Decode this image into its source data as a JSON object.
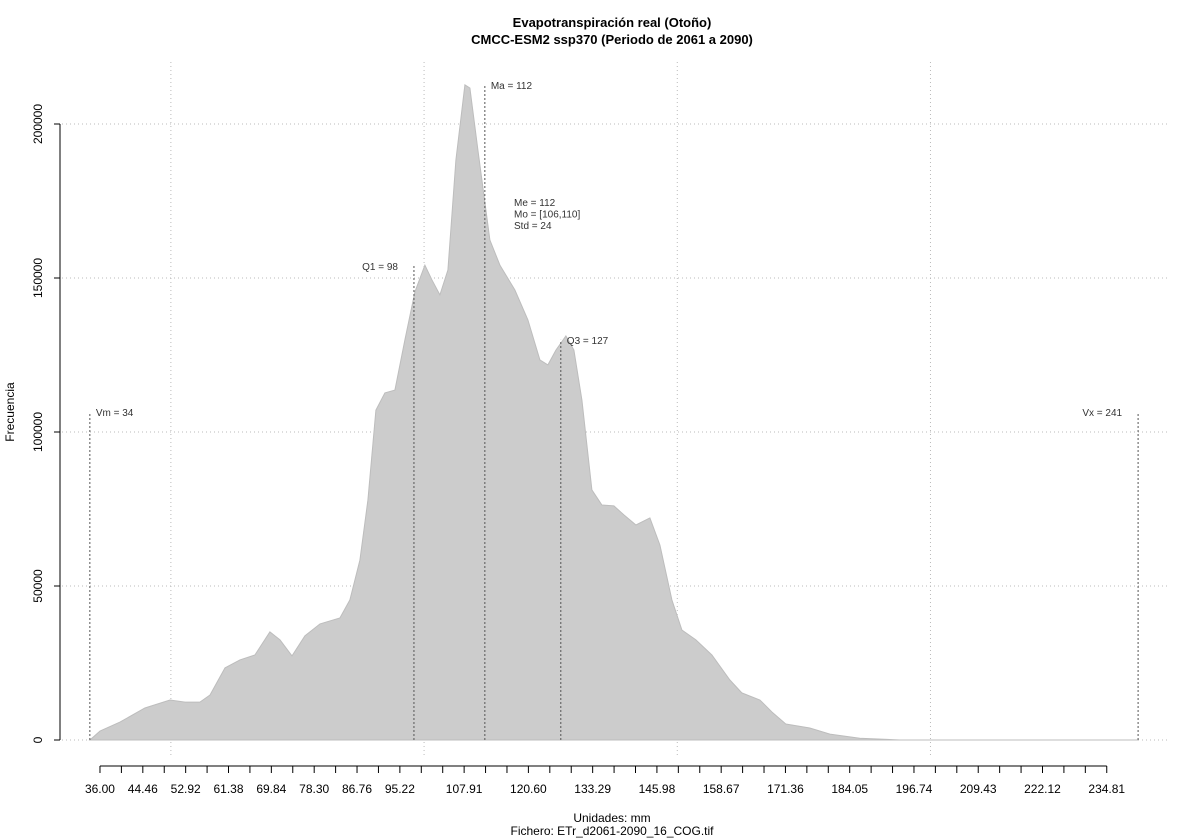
{
  "chart_data": {
    "type": "area",
    "title": "Evapotranspiración real (Otoño)",
    "subtitle": "CMCC-ESM2 ssp370 (Periodo de 2061 a 2090)",
    "xlabel": "Unidades: mm",
    "ylabel": "Frecuencia",
    "caption": "Fichero: ETr_d2061-2090_16_COG.tif",
    "color": "#cccccc",
    "grid": true,
    "xlim": [
      28.5,
      247.3
    ],
    "ylim": [
      -5844,
      220130
    ],
    "yticks": [
      0,
      50000,
      100000,
      150000,
      200000
    ],
    "xgrid": [
      50,
      100,
      150,
      200
    ],
    "xticks": [
      {
        "value": 36.0,
        "label": "36.00"
      },
      {
        "value": 44.46,
        "label": "44.46"
      },
      {
        "value": 52.92,
        "label": "52.92"
      },
      {
        "value": 61.38,
        "label": "61.38"
      },
      {
        "value": 69.84,
        "label": "69.84"
      },
      {
        "value": 78.3,
        "label": "78.30"
      },
      {
        "value": 86.76,
        "label": "86.76"
      },
      {
        "value": 95.22,
        "label": "95.22"
      },
      {
        "value": 107.91,
        "label": "107.91"
      },
      {
        "value": 120.6,
        "label": "120.60"
      },
      {
        "value": 133.29,
        "label": "133.29"
      },
      {
        "value": 145.98,
        "label": "145.98"
      },
      {
        "value": 158.67,
        "label": "158.67"
      },
      {
        "value": 171.36,
        "label": "171.36"
      },
      {
        "value": 184.05,
        "label": "184.05"
      },
      {
        "value": 196.74,
        "label": "196.74"
      },
      {
        "value": 209.43,
        "label": "209.43"
      },
      {
        "value": 222.12,
        "label": "222.12"
      },
      {
        "value": 234.81,
        "label": "234.81"
      }
    ],
    "xminor_ticks": [
      40.23,
      48.69,
      57.15,
      65.61,
      74.07,
      82.53,
      90.99,
      99.45,
      103.68,
      112.14,
      116.37,
      124.83,
      129.06,
      137.52,
      141.75,
      150.21,
      154.44,
      162.9,
      167.13,
      175.59,
      179.82,
      188.28,
      192.51,
      200.97,
      205.2,
      213.66,
      217.89,
      226.35,
      230.58
    ],
    "x": [
      34.0,
      36.0,
      39.95,
      44.88,
      49.82,
      52.78,
      55.74,
      57.72,
      60.68,
      63.64,
      66.6,
      69.56,
      71.54,
      73.91,
      76.47,
      79.44,
      83.38,
      85.36,
      87.33,
      88.91,
      90.49,
      92.27,
      94.24,
      96.22,
      98.19,
      100.17,
      101.55,
      103.13,
      104.71,
      106.29,
      108.06,
      109.05,
      110.63,
      113.0,
      114.97,
      117.94,
      120.5,
      122.87,
      124.45,
      126.03,
      128.0,
      129.58,
      131.16,
      133.14,
      135.11,
      137.48,
      139.46,
      141.83,
      144.59,
      146.56,
      148.93,
      150.91,
      153.67,
      156.83,
      160.38,
      162.75,
      166.31,
      168.68,
      171.44,
      176.18,
      180.13,
      186.05,
      193.95,
      213.69,
      241.0
    ],
    "values": [
      0,
      2900,
      5800,
      10400,
      13000,
      12300,
      12300,
      14600,
      23400,
      26000,
      27600,
      35100,
      32500,
      27300,
      33800,
      37700,
      39600,
      45500,
      58400,
      77900,
      107100,
      112700,
      113600,
      129900,
      145500,
      154200,
      149400,
      144500,
      152600,
      188300,
      212700,
      211700,
      191600,
      162300,
      154200,
      146100,
      136400,
      123400,
      121800,
      126600,
      131200,
      126600,
      110400,
      81200,
      76300,
      76000,
      73100,
      69800,
      72100,
      63300,
      45500,
      35700,
      32500,
      27600,
      19500,
      15300,
      13000,
      9100,
      5200,
      3900,
      1900,
      600,
      0,
      0,
      0
    ],
    "annotations": [
      {
        "label": "Vm = 34",
        "x": 34,
        "y": 106500
      },
      {
        "label": "Q1 = 98",
        "x": 98,
        "y": 153900
      },
      {
        "label": "Ma = 112",
        "x": 112,
        "y": 212700
      },
      {
        "label": "Q3 = 127",
        "x": 127,
        "y": 129900
      },
      {
        "label": "Vx = 241",
        "x": 241,
        "y": 106500
      }
    ],
    "stats": [
      "Me = 112",
      "Mo = [106,110]",
      "Std = 24"
    ]
  }
}
